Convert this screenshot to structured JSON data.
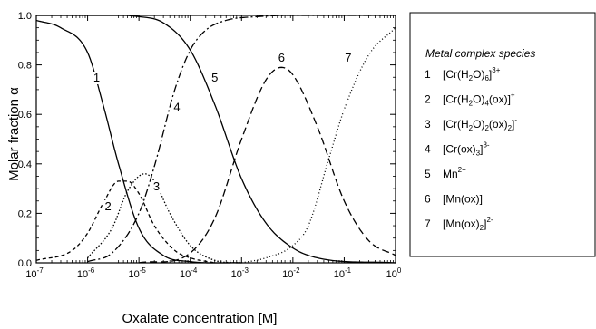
{
  "chart_data": {
    "type": "line",
    "xlabel": "Oxalate concentration  [M]",
    "ylabel": "Molar fraction α",
    "x_scale": "log",
    "xlim": [
      1e-07,
      1
    ],
    "ylim": [
      0,
      1
    ],
    "x_ticks": [
      {
        "value": 1e-07,
        "base": "10",
        "exp": "-7"
      },
      {
        "value": 1e-06,
        "base": "10",
        "exp": "-6"
      },
      {
        "value": 1e-05,
        "base": "10",
        "exp": "-5"
      },
      {
        "value": 0.0001,
        "base": "10",
        "exp": "-4"
      },
      {
        "value": 0.001,
        "base": "10",
        "exp": "-3"
      },
      {
        "value": 0.01,
        "base": "10",
        "exp": "-2"
      },
      {
        "value": 0.1,
        "base": "10",
        "exp": "-1"
      },
      {
        "value": 1,
        "base": "10",
        "exp": "0"
      }
    ],
    "y_ticks": [
      "0.0",
      "0.2",
      "0.4",
      "0.6",
      "0.8",
      "1.0"
    ],
    "legend_title": "Metal complex species",
    "legend_position": "right",
    "series": [
      {
        "id": "1",
        "style": "solid",
        "x": [
          1e-07,
          3e-07,
          1e-06,
          2e-06,
          4e-06,
          1e-05,
          3e-05,
          0.0001,
          0.001
        ],
        "y": [
          0.98,
          0.95,
          0.85,
          0.64,
          0.4,
          0.14,
          0.03,
          0.005,
          0.0
        ],
        "label_x": 1.5e-06,
        "label_y": 0.74
      },
      {
        "id": "2",
        "style": "short-dash",
        "x": [
          1e-07,
          5e-07,
          1e-06,
          2e-06,
          4e-06,
          6e-06,
          1e-05,
          2e-05,
          5e-05,
          0.0001,
          0.0003
        ],
        "y": [
          0.01,
          0.05,
          0.12,
          0.24,
          0.33,
          0.33,
          0.28,
          0.15,
          0.05,
          0.02,
          0.0
        ],
        "label_x": 2.5e-06,
        "label_y": 0.22
      },
      {
        "id": "3",
        "style": "dotted",
        "x": [
          1e-06,
          3e-06,
          6e-06,
          1.3e-05,
          2e-05,
          4e-05,
          0.0001,
          0.0003,
          0.001
        ],
        "y": [
          0.02,
          0.14,
          0.29,
          0.36,
          0.33,
          0.2,
          0.07,
          0.01,
          0.0
        ],
        "label_x": 2.2e-05,
        "label_y": 0.3
      },
      {
        "id": "4",
        "style": "dash-dot",
        "x": [
          1e-06,
          3e-06,
          1e-05,
          2e-05,
          5e-05,
          0.0001,
          0.0002,
          0.0005,
          0.002,
          0.01,
          1
        ],
        "y": [
          0.005,
          0.04,
          0.2,
          0.39,
          0.7,
          0.86,
          0.94,
          0.98,
          0.995,
          1.0,
          1.0
        ],
        "label_x": 5.5e-05,
        "label_y": 0.62
      },
      {
        "id": "5",
        "style": "solid",
        "x": [
          1e-07,
          1e-05,
          3e-05,
          0.0001,
          0.0003,
          0.001,
          0.003,
          0.01,
          0.03,
          1
        ],
        "y": [
          1.0,
          0.995,
          0.97,
          0.86,
          0.64,
          0.34,
          0.16,
          0.06,
          0.02,
          0.0
        ],
        "label_x": 0.0003,
        "label_y": 0.74
      },
      {
        "id": "6",
        "style": "long-dash",
        "x": [
          1e-05,
          0.0001,
          0.0003,
          0.001,
          0.003,
          0.006,
          0.01,
          0.03,
          0.1,
          0.3,
          1
        ],
        "y": [
          0.0,
          0.04,
          0.18,
          0.5,
          0.74,
          0.79,
          0.76,
          0.55,
          0.25,
          0.09,
          0.03
        ],
        "label_x": 0.006,
        "label_y": 0.82
      },
      {
        "id": "7",
        "style": "fine-dot",
        "x": [
          0.001,
          0.003,
          0.01,
          0.02,
          0.05,
          0.1,
          0.3,
          1
        ],
        "y": [
          0.0,
          0.02,
          0.07,
          0.15,
          0.42,
          0.62,
          0.84,
          0.95
        ],
        "label_x": 0.12,
        "label_y": 0.82
      }
    ],
    "legend": [
      {
        "num": "1",
        "parts": [
          {
            "t": "[Cr(H"
          },
          {
            "t": "2",
            "s": "sub"
          },
          {
            "t": "O)"
          },
          {
            "t": "6",
            "s": "sub"
          },
          {
            "t": "]"
          },
          {
            "t": "3+",
            "s": "sup"
          }
        ]
      },
      {
        "num": "2",
        "parts": [
          {
            "t": "[Cr(H"
          },
          {
            "t": "2",
            "s": "sub"
          },
          {
            "t": "O)"
          },
          {
            "t": "4",
            "s": "sub"
          },
          {
            "t": "(ox)]"
          },
          {
            "t": "+",
            "s": "sup"
          }
        ]
      },
      {
        "num": "3",
        "parts": [
          {
            "t": "[Cr(H"
          },
          {
            "t": "2",
            "s": "sub"
          },
          {
            "t": "O)"
          },
          {
            "t": "2",
            "s": "sub"
          },
          {
            "t": "(ox)"
          },
          {
            "t": "2",
            "s": "sub"
          },
          {
            "t": "]"
          },
          {
            "t": "-",
            "s": "sup"
          }
        ]
      },
      {
        "num": "4",
        "parts": [
          {
            "t": "[Cr(ox)"
          },
          {
            "t": "3",
            "s": "sub"
          },
          {
            "t": "]"
          },
          {
            "t": "3-",
            "s": "sup"
          }
        ]
      },
      {
        "num": "5",
        "parts": [
          {
            "t": "Mn"
          },
          {
            "t": "2+",
            "s": "sup"
          }
        ]
      },
      {
        "num": "6",
        "parts": [
          {
            "t": "[Mn(ox)]"
          }
        ]
      },
      {
        "num": "7",
        "parts": [
          {
            "t": "[Mn(ox)"
          },
          {
            "t": "2",
            "s": "sub"
          },
          {
            "t": "]"
          },
          {
            "t": "2-",
            "s": "sup"
          }
        ]
      }
    ]
  }
}
